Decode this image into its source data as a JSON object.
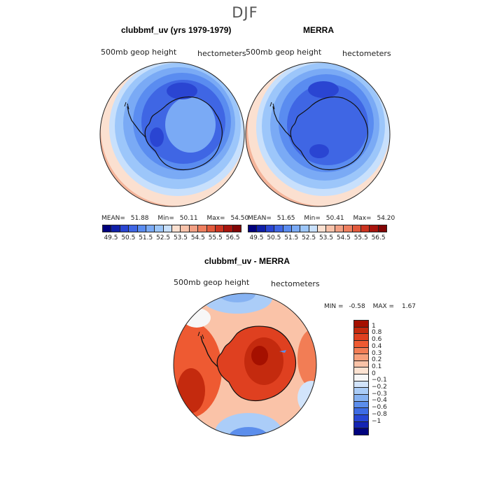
{
  "season": "DJF",
  "panels": {
    "model": {
      "title": "clubbmf_uv (yrs 1979-1979)",
      "variable_label": "500mb geop height",
      "units": "hectometers",
      "mean_label": "MEAN=",
      "mean": "51.88",
      "min_label": "Min=",
      "min": "50.11",
      "max_label": "Max=",
      "max": "54.50"
    },
    "obs": {
      "title": "MERRA",
      "variable_label": "500mb geop height",
      "units": "hectometers",
      "mean_label": "MEAN=",
      "mean": "51.65",
      "min_label": "Min=",
      "min": "50.41",
      "max_label": "Max=",
      "max": "54.20"
    },
    "diff": {
      "title": "clubbmf_uv - MERRA",
      "variable_label": "500mb geop height",
      "units": "hectometers",
      "min_label": "MIN =",
      "min": "-0.58",
      "max_label": "MAX =",
      "max": "1.67"
    }
  },
  "abs_colorbar": {
    "colors": [
      "#00007d",
      "#0f1fa8",
      "#2a45d2",
      "#3f66e4",
      "#5a8cf0",
      "#7aaaf5",
      "#9cc6fa",
      "#c8e0fc",
      "#fbe0d0",
      "#f8c2aa",
      "#f2a084",
      "#ee7f5f",
      "#e25a3c",
      "#cc3320",
      "#a8140d",
      "#820505"
    ],
    "ticks": [
      "49.5",
      "50.5",
      "51.5",
      "52.5",
      "53.5",
      "54.5",
      "55.5",
      "56.5"
    ]
  },
  "diff_colorbar": {
    "colors": [
      "#a51000",
      "#c42a0e",
      "#df4020",
      "#ee5a32",
      "#f27d55",
      "#f6a07c",
      "#fac3a8",
      "#fde3d2",
      "#f7f7f7",
      "#d2e4fb",
      "#abcdf8",
      "#86b2f2",
      "#5c8eec",
      "#3e6ce4",
      "#2746d4",
      "#1424b4",
      "#00037e"
    ],
    "ticks": [
      "1",
      "0.8",
      "0.6",
      "0.4",
      "0.3",
      "0.2",
      "0.1",
      "0",
      "−0.1",
      "−0.2",
      "−0.3",
      "−0.4",
      "−0.6",
      "−0.8",
      "−1"
    ]
  }
}
